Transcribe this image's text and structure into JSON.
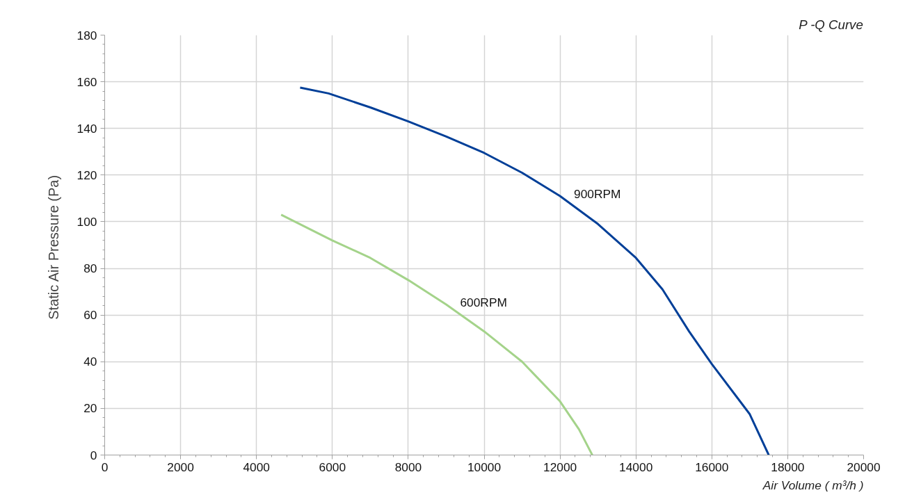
{
  "chart_data": {
    "type": "line",
    "title": "P -Q Curve",
    "xlabel": "Air Volume ( m³/h )",
    "ylabel": "Static Air Pressure  (Pa)",
    "xlim": [
      0,
      20000
    ],
    "xticks": [
      0,
      2000,
      4000,
      6000,
      8000,
      10000,
      12000,
      14000,
      16000,
      18000,
      20000
    ],
    "ylim": [
      0,
      180
    ],
    "yticks": [
      0,
      20,
      40,
      60,
      80,
      100,
      120,
      140,
      160,
      180
    ],
    "grid": true,
    "series": [
      {
        "name": "900RPM",
        "color": "#003f98",
        "x": [
          5150,
          5900,
          7000,
          8000,
          9000,
          10000,
          11000,
          12000,
          13000,
          14000,
          14700,
          15400,
          16000,
          17000,
          17500
        ],
        "values": [
          157.5,
          155,
          149,
          143,
          136.5,
          129.5,
          121,
          111,
          99,
          84.5,
          71,
          53,
          39,
          17.5,
          0
        ]
      },
      {
        "name": "600RPM",
        "color": "#a4d38a",
        "x": [
          4650,
          6000,
          7000,
          8000,
          9000,
          10000,
          11000,
          12000,
          12500,
          12850
        ],
        "values": [
          103,
          92,
          84.5,
          75,
          64.5,
          53,
          40,
          23,
          11,
          0
        ]
      }
    ]
  }
}
